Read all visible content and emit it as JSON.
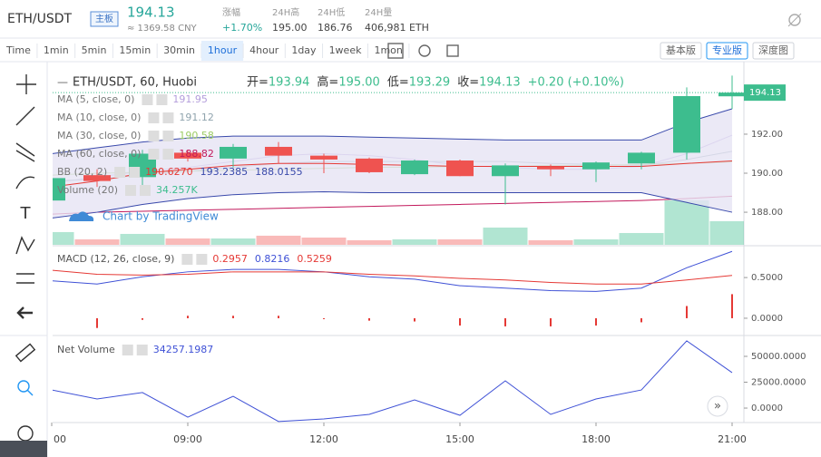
{
  "header": {
    "pair": "ETH/USDT",
    "badge": "主板",
    "price": "194.13",
    "cny": "≈ 1369.58 CNY",
    "stats": [
      {
        "label": "涨幅",
        "value": "+1.70%"
      },
      {
        "label": "24H高",
        "value": "195.00"
      },
      {
        "label": "24H低",
        "value": "186.76"
      },
      {
        "label": "24H量",
        "value": "406,981 ETH"
      }
    ]
  },
  "toolbar": {
    "intervals": [
      {
        "label": "Time"
      },
      {
        "label": "1min"
      },
      {
        "label": "5min"
      },
      {
        "label": "15min"
      },
      {
        "label": "30min"
      },
      {
        "label": "1hour",
        "selected": true
      },
      {
        "label": "4hour"
      },
      {
        "label": "1day"
      },
      {
        "label": "1week"
      },
      {
        "label": "1mon"
      }
    ],
    "views": [
      {
        "label": "基本版"
      },
      {
        "label": "专业版",
        "selected": true
      },
      {
        "label": "深度图"
      }
    ]
  },
  "chart_data": [
    {
      "type": "candlestick",
      "title": "ETH/USDT, 60, Huobi",
      "ohlc_legend": [
        {
          "label": "开=",
          "value": "193.94"
        },
        {
          "label": "高=",
          "value": "195.00"
        },
        {
          "label": "低=",
          "value": "193.29"
        },
        {
          "label": "收=",
          "value": "194.13"
        }
      ],
      "change": "+0.20 (+0.10%)",
      "watermark": "Chart by TradingView",
      "categories": [
        "00",
        null,
        null,
        "09:00",
        null,
        null,
        "12:00",
        null,
        null,
        "15:00",
        null,
        null,
        "18:00",
        null,
        null,
        "21:00"
      ],
      "open": [
        188.6,
        189.9,
        189.8,
        191.05,
        190.75,
        191.35,
        190.9,
        190.75,
        189.95,
        190.65,
        189.85,
        190.35,
        190.2,
        190.5,
        191.05,
        193.94
      ],
      "high": [
        189.9,
        190.2,
        191.2,
        191.2,
        191.5,
        191.6,
        191.0,
        190.8,
        190.7,
        190.7,
        190.5,
        190.45,
        190.6,
        191.1,
        194.4,
        195.0
      ],
      "low": [
        188.4,
        189.3,
        189.35,
        190.6,
        190.3,
        190.5,
        190.0,
        190.0,
        189.9,
        189.85,
        188.4,
        189.85,
        189.55,
        190.2,
        190.7,
        193.29
      ],
      "close": [
        189.75,
        189.6,
        191.0,
        190.75,
        191.35,
        190.9,
        190.7,
        190.05,
        190.65,
        189.85,
        190.4,
        190.2,
        190.55,
        191.05,
        193.95,
        194.13
      ],
      "up_color": "#3dbd8e",
      "down_color": "#ef5350",
      "ylim": [
        186.33,
        195.53
      ],
      "yticks": [
        {
          "value": 188,
          "label": "188.00"
        },
        {
          "value": 190,
          "label": "190.00"
        },
        {
          "value": 192,
          "label": "192.00"
        }
      ],
      "volume": {
        "name": "Volume (20)",
        "legend": "34.257K",
        "vlim": [
          0,
          260000
        ],
        "values": [
          18450,
          7900,
          15800,
          9200,
          9200,
          13200,
          10500,
          6600,
          7900,
          7900,
          25000,
          6600,
          7900,
          17100,
          64500,
          34257
        ]
      },
      "indicators": [
        {
          "name": "MA (5, close, 0)",
          "legend": "191.95",
          "color": "#b39ddb",
          "values": [
            189.5,
            189.8,
            190.1,
            190.3,
            190.6,
            190.9,
            191.0,
            190.9,
            190.7,
            190.4,
            190.3,
            190.2,
            190.2,
            190.35,
            191.0,
            191.95
          ]
        },
        {
          "name": "MA (10, close, 0)",
          "legend": "191.12",
          "color": "#90a4ae",
          "values": [
            189.6,
            189.7,
            189.9,
            190.1,
            190.3,
            190.5,
            190.6,
            190.6,
            190.6,
            190.6,
            190.6,
            190.5,
            190.45,
            190.4,
            190.7,
            191.12
          ]
        },
        {
          "name": "MA (30, close, 0)",
          "legend": "190.58",
          "color": "#9ccc65",
          "values": [
            189.9,
            190.0,
            190.05,
            190.1,
            190.15,
            190.2,
            190.25,
            190.3,
            190.3,
            190.35,
            190.35,
            190.4,
            190.4,
            190.45,
            190.5,
            190.58
          ]
        },
        {
          "name": "MA (60, close, 0)",
          "legend": "188.82",
          "color": "#c2185b",
          "values": [
            187.9,
            188.0,
            188.05,
            188.1,
            188.15,
            188.2,
            188.25,
            188.3,
            188.35,
            188.4,
            188.45,
            188.5,
            188.55,
            188.6,
            188.7,
            188.82
          ]
        },
        {
          "name": "BB (20, 2)",
          "fill_color": "#e6e4f4",
          "bands": [
            {
              "legend": "190.6270",
              "color": "#e53935",
              "values": [
                189.3,
                189.6,
                190.0,
                190.2,
                190.4,
                190.5,
                190.5,
                190.45,
                190.4,
                190.35,
                190.35,
                190.35,
                190.35,
                190.35,
                190.5,
                190.63
              ]
            },
            {
              "legend": "193.2385",
              "color": "#3949ab",
              "values": [
                191.0,
                191.3,
                191.6,
                191.8,
                191.9,
                191.9,
                191.9,
                191.85,
                191.8,
                191.75,
                191.7,
                191.7,
                191.7,
                191.7,
                192.6,
                193.3
              ]
            },
            {
              "legend": "188.0155",
              "color": "#3949ab",
              "values": [
                187.7,
                188.0,
                188.4,
                188.7,
                188.9,
                189.0,
                189.05,
                189.0,
                189.0,
                189.0,
                189.0,
                189.0,
                189.0,
                189.0,
                188.5,
                188.0
              ]
            }
          ]
        }
      ]
    },
    {
      "type": "macd",
      "title": "MACD (12, 26, close, 9)",
      "ylim": [
        -0.19,
        0.88
      ],
      "yticks": [
        {
          "value": 0,
          "label": "0.0000"
        },
        {
          "value": 0.5,
          "label": "0.5000"
        }
      ],
      "series": [
        {
          "name": "Histogram",
          "color": "#e53935",
          "style": "histogram",
          "values": [
            -0.13,
            -0.12,
            -0.02,
            0.03,
            0.03,
            0.03,
            0.0,
            -0.03,
            -0.04,
            -0.09,
            -0.1,
            -0.1,
            -0.09,
            -0.05,
            0.15,
            0.2957
          ]
        },
        {
          "name": "MACD",
          "color": "#3f51d6",
          "style": "line",
          "values": [
            0.46,
            0.42,
            0.51,
            0.57,
            0.6,
            0.6,
            0.57,
            0.51,
            0.48,
            0.4,
            0.37,
            0.34,
            0.33,
            0.37,
            0.62,
            0.8216
          ]
        },
        {
          "name": "Signal",
          "color": "#e53935",
          "style": "line",
          "values": [
            0.59,
            0.54,
            0.53,
            0.54,
            0.57,
            0.57,
            0.57,
            0.54,
            0.52,
            0.49,
            0.47,
            0.44,
            0.42,
            0.42,
            0.47,
            0.5259
          ]
        }
      ]
    },
    {
      "type": "line",
      "title": "Net Volume",
      "ylim": [
        -14000,
        68400
      ],
      "yticks": [
        {
          "value": 0,
          "label": "0.0000"
        },
        {
          "value": 25000,
          "label": "25000.0000"
        },
        {
          "value": 50000,
          "label": "50000.0000"
        }
      ],
      "series": [
        {
          "color": "#3f51d6",
          "values": [
            17500,
            8800,
            15000,
            -8800,
            11400,
            -13000,
            -10500,
            -6100,
            7900,
            -7000,
            26300,
            -6100,
            8800,
            17500,
            65000,
            34257.1987
          ]
        }
      ]
    }
  ]
}
